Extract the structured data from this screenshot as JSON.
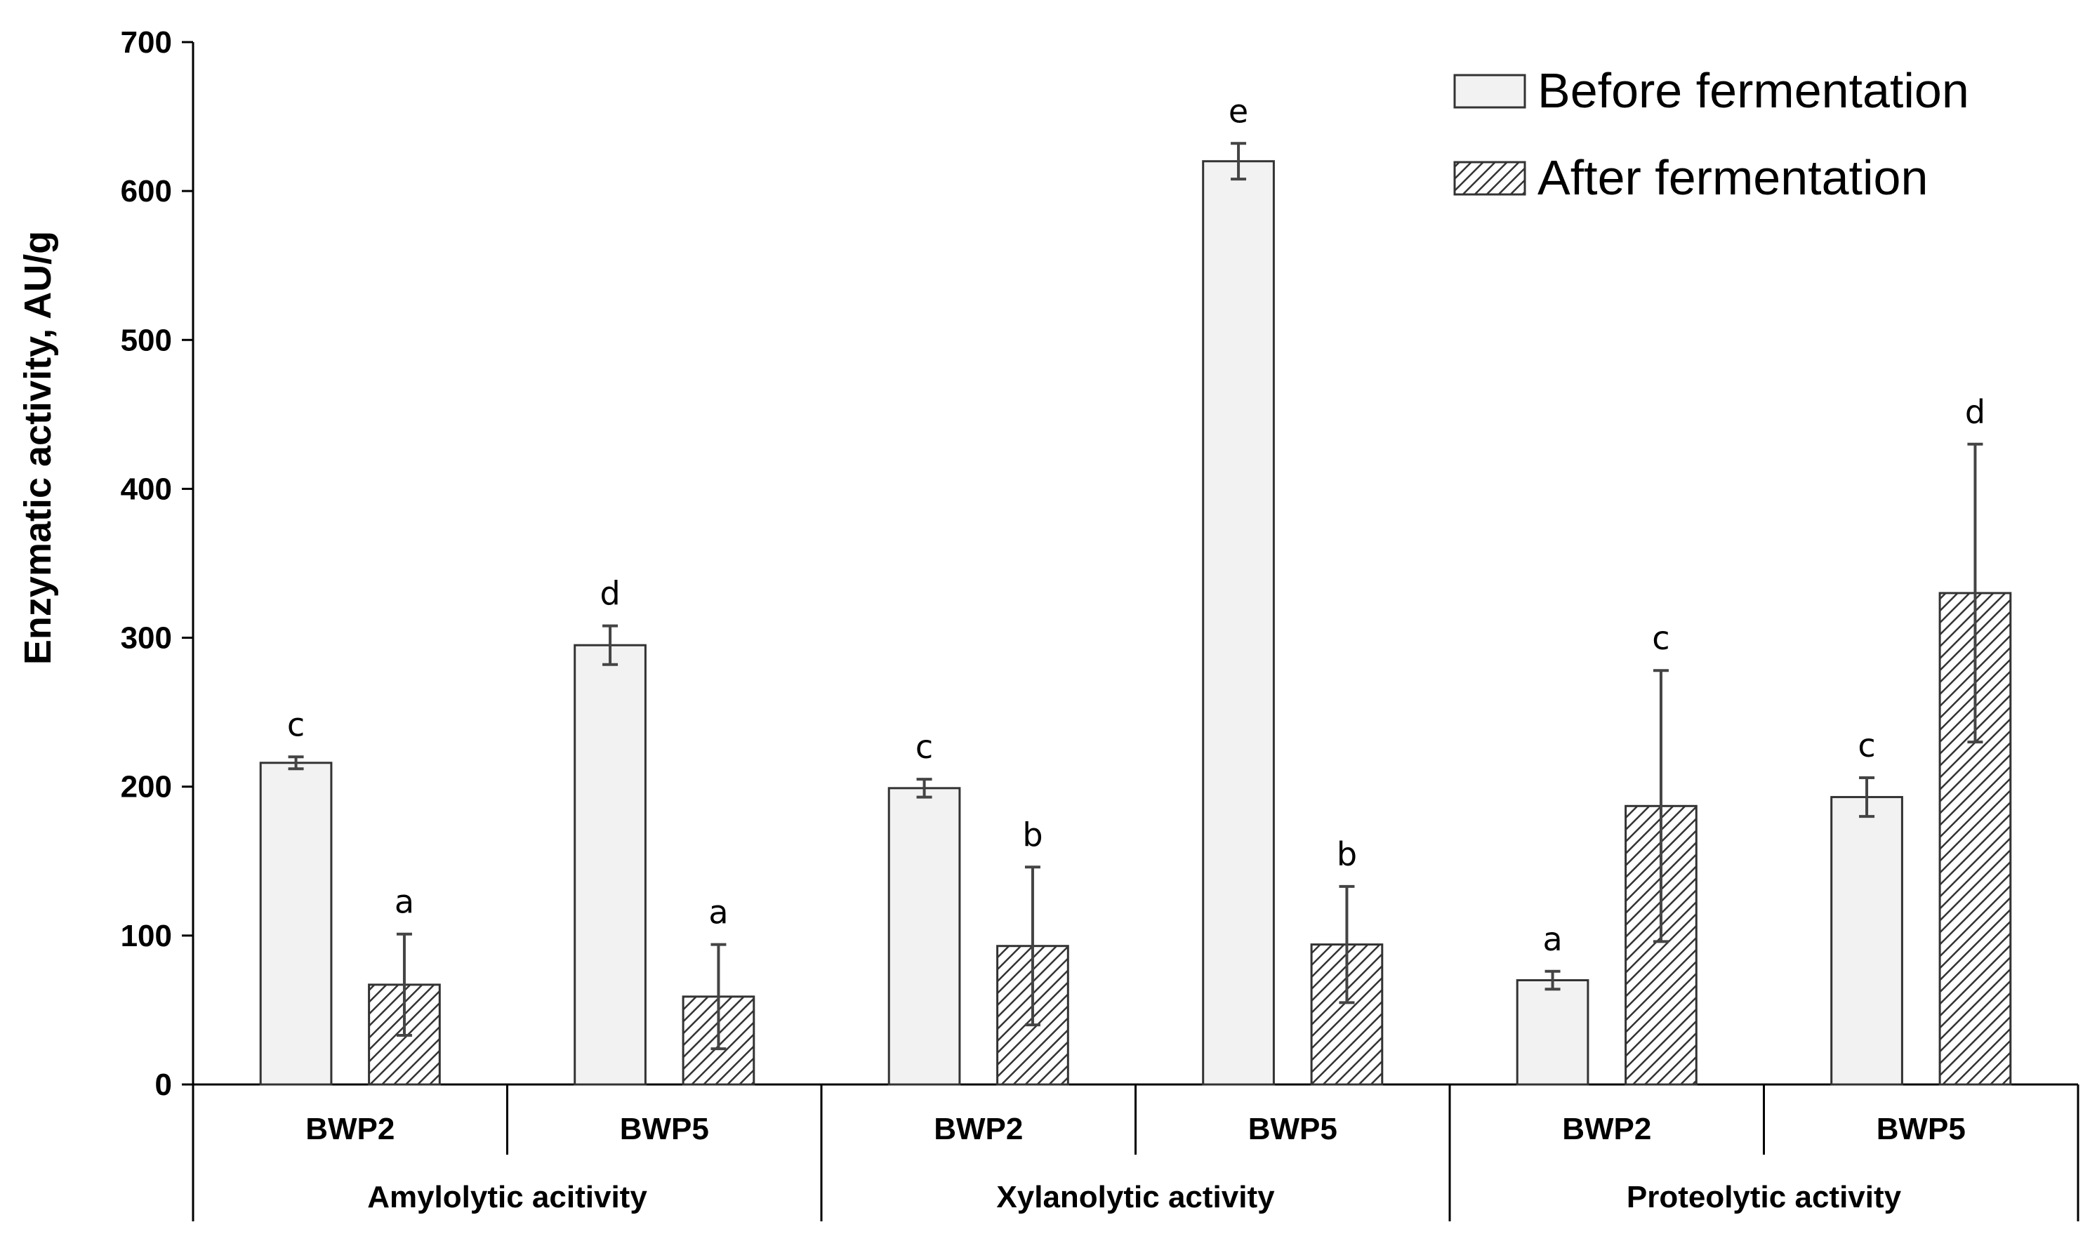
{
  "chart_data": {
    "type": "bar",
    "title": "",
    "ylabel": "Enzymatic activity, AU/g",
    "xlabel": "",
    "ylim": [
      0,
      700
    ],
    "yticks": [
      0,
      100,
      200,
      300,
      400,
      500,
      600,
      700
    ],
    "groups": [
      {
        "label": "Amylolytic acitivity",
        "subcategories": [
          "BWP2",
          "BWP5"
        ]
      },
      {
        "label": "Xylanolytic activity",
        "subcategories": [
          "BWP2",
          "BWP5"
        ]
      },
      {
        "label": "Proteolytic activity",
        "subcategories": [
          "BWP2",
          "BWP5"
        ]
      }
    ],
    "series": [
      {
        "name": "Before fermentation",
        "pattern": "solid",
        "fill": "#f2f2f2",
        "values": [
          216,
          295,
          199,
          620,
          70,
          193
        ],
        "errors": [
          4,
          13,
          6,
          12,
          6,
          13
        ],
        "significance": [
          "c",
          "d",
          "c",
          "e",
          "a",
          "c"
        ]
      },
      {
        "name": "After fermentation",
        "pattern": "hatched",
        "fill": "#ffffff",
        "values": [
          67,
          59,
          93,
          94,
          187,
          330
        ],
        "errors": [
          34,
          35,
          53,
          39,
          91,
          100
        ],
        "significance": [
          "a",
          "a",
          "b",
          "b",
          "c",
          "d"
        ]
      }
    ],
    "legend_position": "top-right",
    "grid": false
  }
}
